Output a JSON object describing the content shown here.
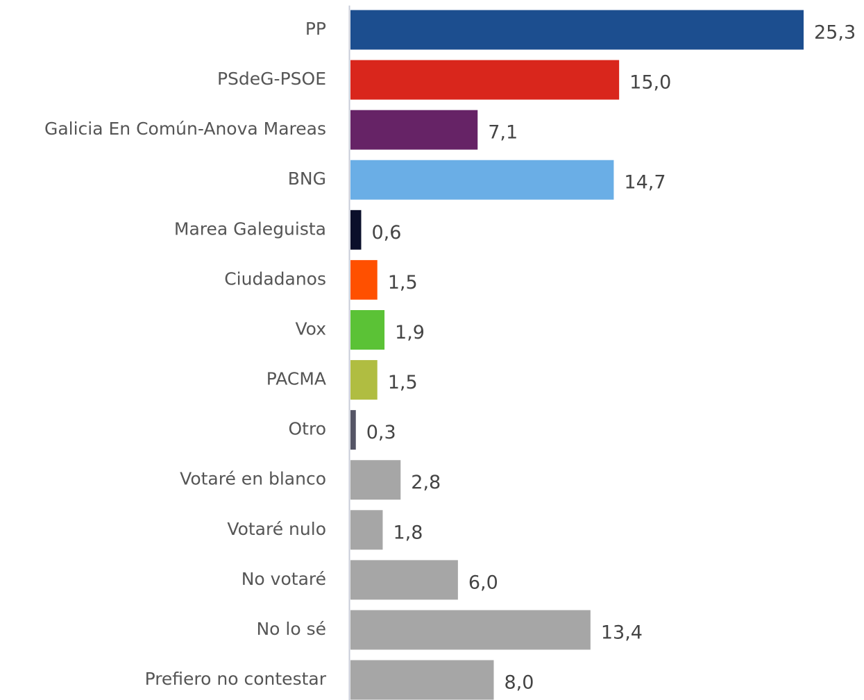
{
  "chart_data": {
    "type": "bar",
    "orientation": "horizontal",
    "categories": [
      "PP",
      "PSdeG-PSOE",
      "Galicia En Común-Anova Mareas",
      "BNG",
      "Marea Galeguista",
      "Ciudadanos",
      "Vox",
      "PACMA",
      "Otro",
      "Votaré en blanco",
      "Votaré nulo",
      "No votaré",
      "No lo sé",
      "Prefiero no contestar"
    ],
    "values": [
      25.3,
      15.0,
      7.1,
      14.7,
      0.6,
      1.5,
      1.9,
      1.5,
      0.3,
      2.8,
      1.8,
      6.0,
      13.4,
      8.0
    ],
    "value_labels": [
      "25,3",
      "15,0",
      "7,1",
      "14,7",
      "0,6",
      "1,5",
      "1,9",
      "1,5",
      "0,3",
      "2,8",
      "1,8",
      "6,0",
      "13,4",
      "8,0"
    ],
    "colors": [
      "#1c4e8f",
      "#d9261c",
      "#662366",
      "#6aaee6",
      "#0a0f2a",
      "#ff5000",
      "#5bc236",
      "#b0bd41",
      "#555566",
      "#a6a6a6",
      "#a6a6a6",
      "#a6a6a6",
      "#a6a6a6",
      "#a6a6a6"
    ]
  }
}
